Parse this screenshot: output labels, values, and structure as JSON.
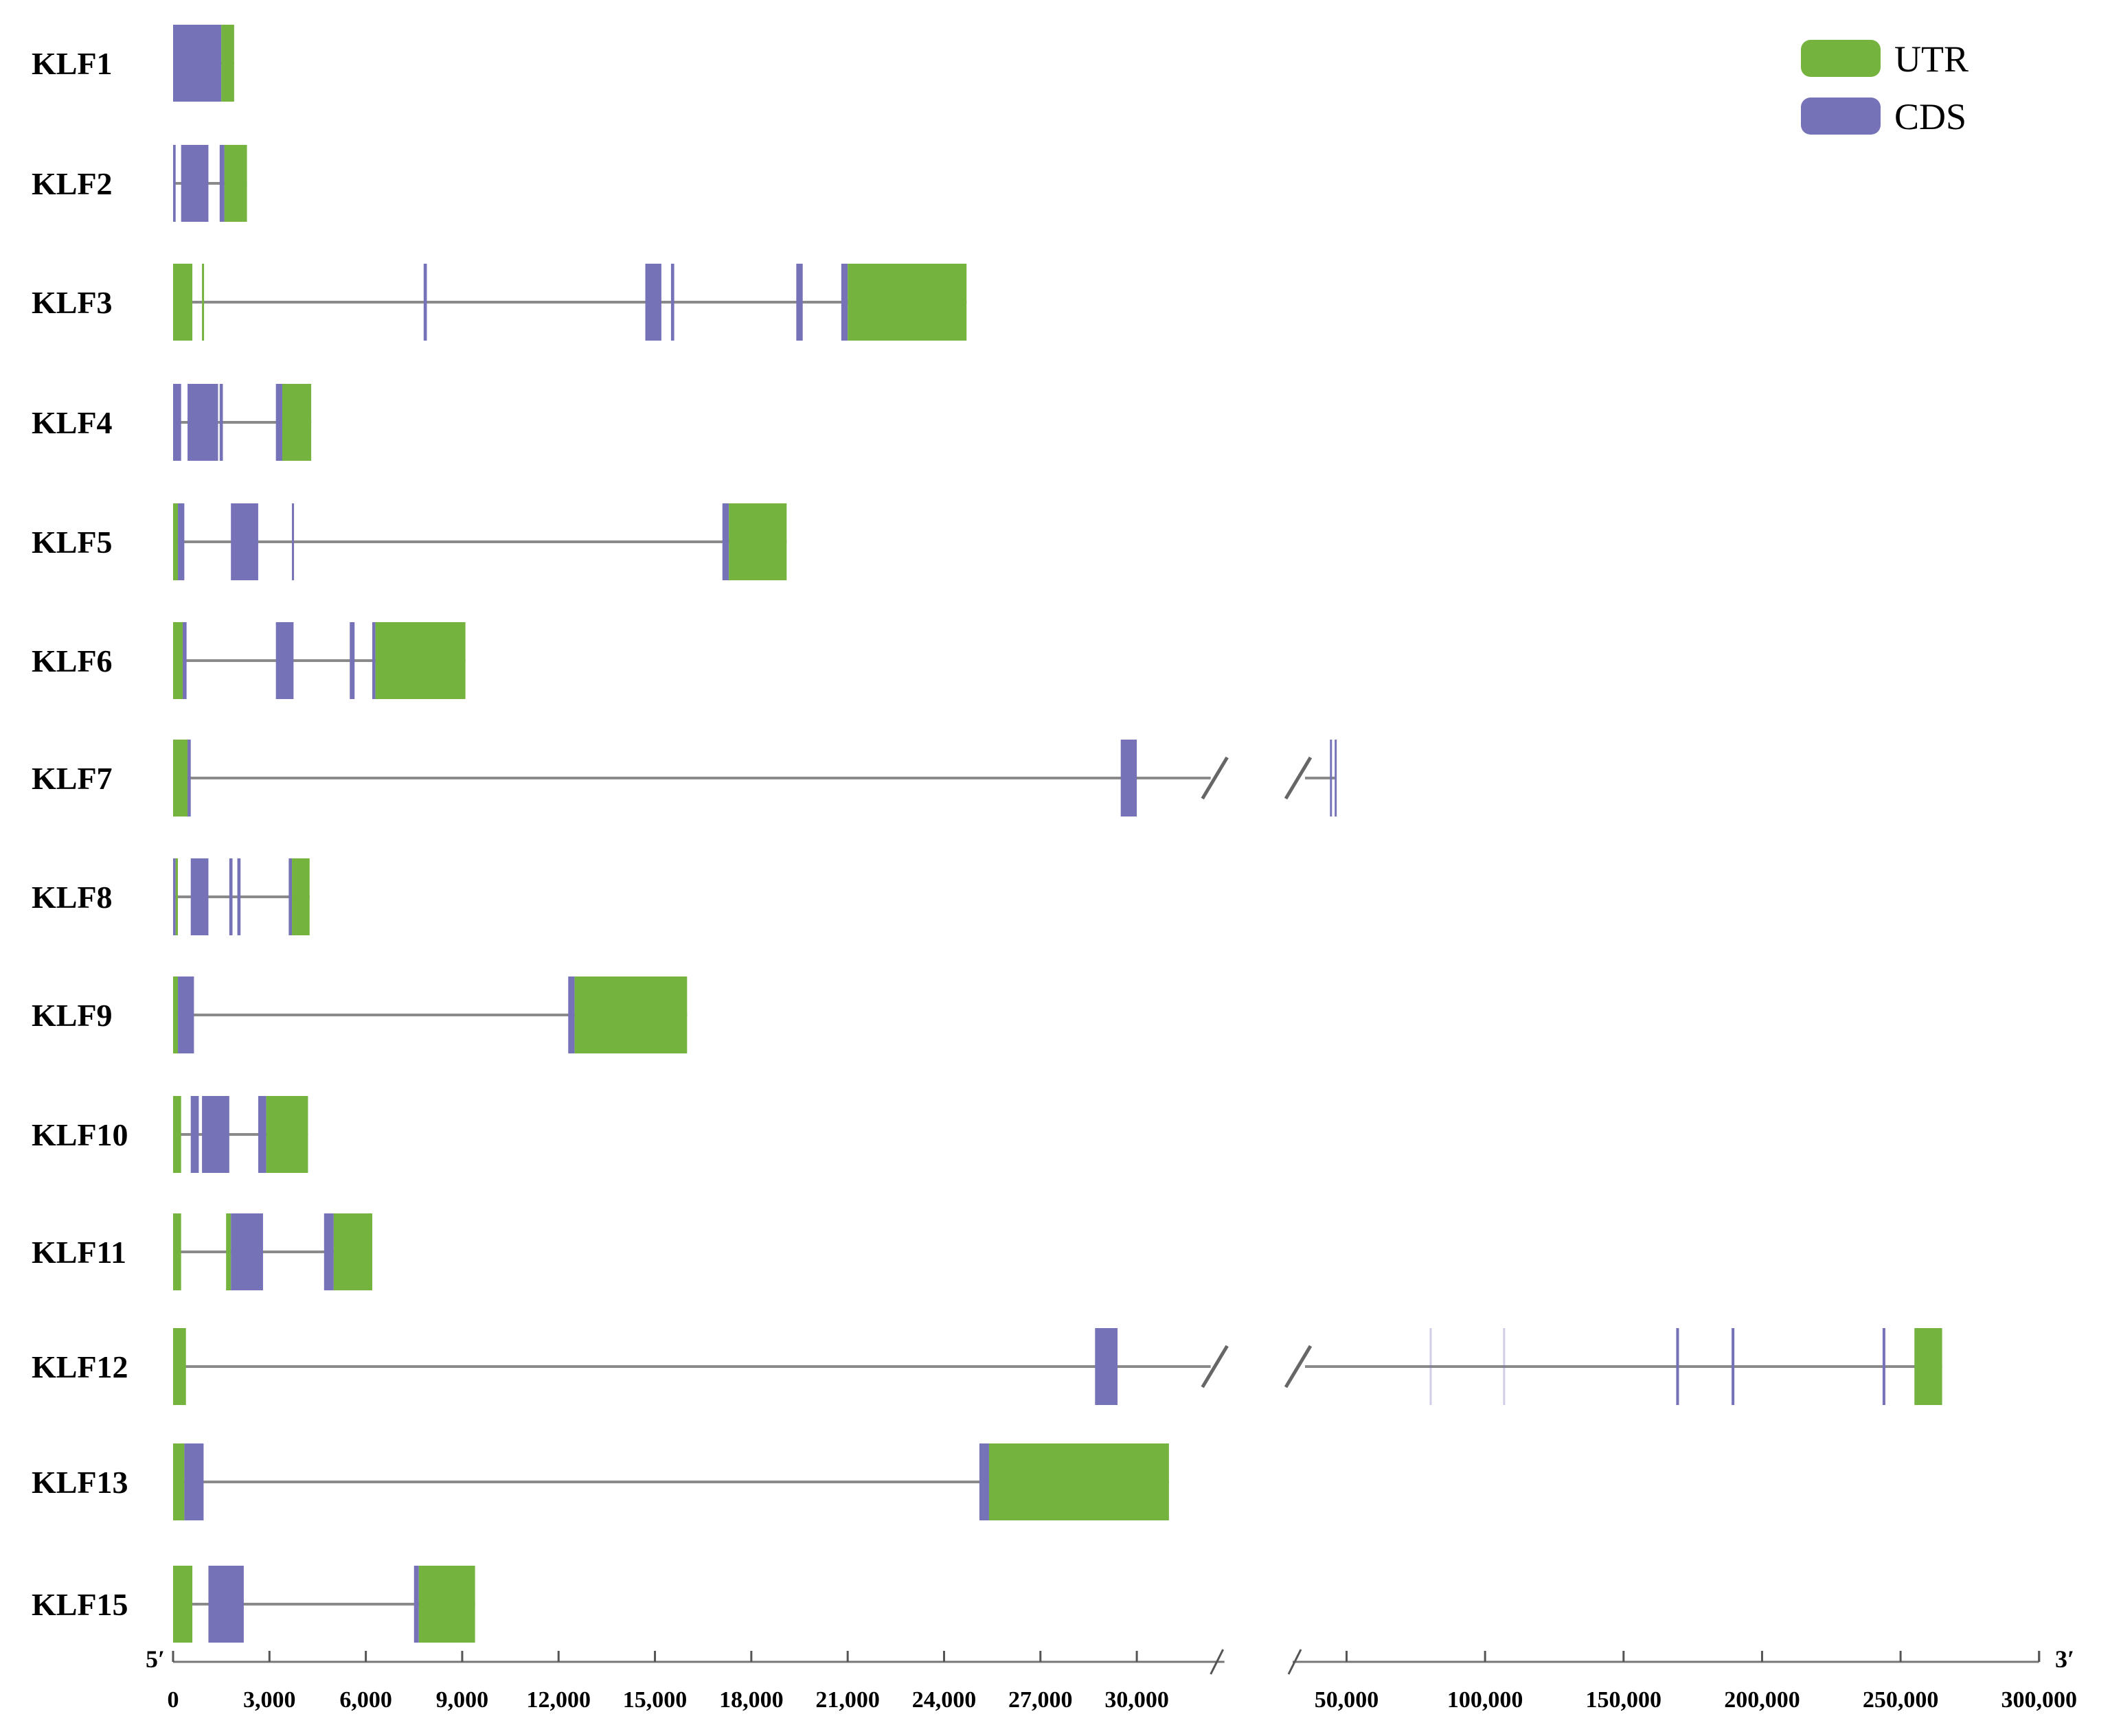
{
  "legend": {
    "utr_label": "UTR",
    "cds_label": "CDS",
    "utr_color": "#74b33e",
    "cds_color": "#7672b8"
  },
  "intron_color": "#8a8a8a",
  "axis": {
    "start_label": "5′",
    "end_label": "3′",
    "segment1_ticks": [
      "0",
      "3,000",
      "6,000",
      "9,000",
      "12,000",
      "15,000",
      "18,000",
      "21,000",
      "24,000",
      "27,000",
      "30,000"
    ],
    "segment1_tick_values": [
      0,
      3000,
      6000,
      9000,
      12000,
      15000,
      18000,
      21000,
      24000,
      27000,
      30000
    ],
    "segment1_range_bp": [
      0,
      32300
    ],
    "segment2_ticks": [
      "50,000",
      "100,000",
      "150,000",
      "200,000",
      "250,000",
      "300,000"
    ],
    "segment2_tick_values": [
      50000,
      100000,
      150000,
      200000,
      250000,
      300000
    ],
    "segment2_range_bp": [
      35000,
      300000
    ]
  },
  "genes": [
    {
      "name": "KLF1",
      "span": [
        0,
        1900
      ],
      "exons": [
        {
          "s": 0,
          "e": 1500,
          "t": "cds"
        },
        {
          "s": 1500,
          "e": 1900,
          "t": "utr"
        }
      ]
    },
    {
      "name": "KLF2",
      "span": [
        0,
        2300
      ],
      "exons": [
        {
          "s": 0,
          "e": 80,
          "t": "cds"
        },
        {
          "s": 250,
          "e": 1100,
          "t": "cds"
        },
        {
          "s": 1450,
          "e": 1600,
          "t": "cds"
        },
        {
          "s": 1600,
          "e": 2300,
          "t": "utr"
        }
      ]
    },
    {
      "name": "KLF3",
      "span": [
        0,
        24700
      ],
      "exons": [
        {
          "s": 0,
          "e": 600,
          "t": "utr"
        },
        {
          "s": 900,
          "e": 960,
          "t": "utr"
        },
        {
          "s": 7800,
          "e": 7900,
          "t": "cds"
        },
        {
          "s": 14700,
          "e": 15200,
          "t": "cds"
        },
        {
          "s": 15500,
          "e": 15600,
          "t": "cds"
        },
        {
          "s": 19400,
          "e": 19600,
          "t": "cds"
        },
        {
          "s": 20800,
          "e": 21000,
          "t": "cds"
        },
        {
          "s": 21000,
          "e": 24700,
          "t": "utr"
        }
      ]
    },
    {
      "name": "KLF4",
      "span": [
        0,
        4300
      ],
      "exons": [
        {
          "s": 0,
          "e": 250,
          "t": "cds"
        },
        {
          "s": 450,
          "e": 1400,
          "t": "cds"
        },
        {
          "s": 1450,
          "e": 1550,
          "t": "cds"
        },
        {
          "s": 3200,
          "e": 3400,
          "t": "cds"
        },
        {
          "s": 3400,
          "e": 4300,
          "t": "utr"
        }
      ]
    },
    {
      "name": "KLF5",
      "span": [
        0,
        19100
      ],
      "exons": [
        {
          "s": 0,
          "e": 150,
          "t": "utr"
        },
        {
          "s": 150,
          "e": 350,
          "t": "cds"
        },
        {
          "s": 1800,
          "e": 2650,
          "t": "cds"
        },
        {
          "s": 3700,
          "e": 3760,
          "t": "cds"
        },
        {
          "s": 17100,
          "e": 17300,
          "t": "cds"
        },
        {
          "s": 17300,
          "e": 19100,
          "t": "utr"
        }
      ]
    },
    {
      "name": "KLF6",
      "span": [
        0,
        9100
      ],
      "exons": [
        {
          "s": 0,
          "e": 300,
          "t": "utr"
        },
        {
          "s": 300,
          "e": 420,
          "t": "cds"
        },
        {
          "s": 3200,
          "e": 3750,
          "t": "cds"
        },
        {
          "s": 5500,
          "e": 5650,
          "t": "cds"
        },
        {
          "s": 6200,
          "e": 6300,
          "t": "cds"
        },
        {
          "s": 6300,
          "e": 9100,
          "t": "utr"
        }
      ]
    },
    {
      "name": "KLF7",
      "span": [
        0,
        32300
      ],
      "break": true,
      "span2": [
        35000,
        46000
      ],
      "exons": [
        {
          "s": 0,
          "e": 450,
          "t": "utr"
        },
        {
          "s": 450,
          "e": 550,
          "t": "cds"
        },
        {
          "s": 29500,
          "e": 30000,
          "t": "cds"
        },
        {
          "s": 44000,
          "e": 44200,
          "t": "cds"
        },
        {
          "s": 45700,
          "e": 45900,
          "t": "cds"
        }
      ]
    },
    {
      "name": "KLF8",
      "span": [
        0,
        4250
      ],
      "exons": [
        {
          "s": 0,
          "e": 80,
          "t": "cds"
        },
        {
          "s": 80,
          "e": 150,
          "t": "utr"
        },
        {
          "s": 550,
          "e": 1100,
          "t": "cds"
        },
        {
          "s": 1750,
          "e": 1850,
          "t": "cds"
        },
        {
          "s": 2000,
          "e": 2100,
          "t": "cds"
        },
        {
          "s": 3600,
          "e": 3700,
          "t": "cds"
        },
        {
          "s": 3700,
          "e": 4250,
          "t": "utr"
        }
      ]
    },
    {
      "name": "KLF9",
      "span": [
        0,
        16000
      ],
      "exons": [
        {
          "s": 0,
          "e": 150,
          "t": "utr"
        },
        {
          "s": 150,
          "e": 650,
          "t": "cds"
        },
        {
          "s": 12300,
          "e": 12500,
          "t": "cds"
        },
        {
          "s": 12500,
          "e": 16000,
          "t": "utr"
        }
      ]
    },
    {
      "name": "KLF10",
      "span": [
        0,
        4200
      ],
      "exons": [
        {
          "s": 0,
          "e": 250,
          "t": "utr"
        },
        {
          "s": 550,
          "e": 800,
          "t": "cds"
        },
        {
          "s": 900,
          "e": 1750,
          "t": "cds"
        },
        {
          "s": 2650,
          "e": 2900,
          "t": "cds"
        },
        {
          "s": 2900,
          "e": 4200,
          "t": "utr"
        }
      ]
    },
    {
      "name": "KLF11",
      "span": [
        0,
        6200
      ],
      "exons": [
        {
          "s": 0,
          "e": 250,
          "t": "utr"
        },
        {
          "s": 1650,
          "e": 1800,
          "t": "utr"
        },
        {
          "s": 1800,
          "e": 2800,
          "t": "cds"
        },
        {
          "s": 4700,
          "e": 5000,
          "t": "cds"
        },
        {
          "s": 5000,
          "e": 6200,
          "t": "utr"
        }
      ]
    },
    {
      "name": "KLF12",
      "span": [
        0,
        32300
      ],
      "break": true,
      "span2": [
        35000,
        265000
      ],
      "exons": [
        {
          "s": 0,
          "e": 400,
          "t": "utr"
        },
        {
          "s": 28700,
          "e": 29400,
          "t": "cds"
        },
        {
          "s": 80000,
          "e": 80400,
          "t": "cds",
          "faint": true
        },
        {
          "s": 106500,
          "e": 106900,
          "t": "cds",
          "faint": true
        },
        {
          "s": 169000,
          "e": 170000,
          "t": "cds"
        },
        {
          "s": 189000,
          "e": 190000,
          "t": "cds"
        },
        {
          "s": 243500,
          "e": 244500,
          "t": "cds"
        },
        {
          "s": 255000,
          "e": 265000,
          "t": "utr"
        }
      ]
    },
    {
      "name": "KLF13",
      "span": [
        0,
        31000
      ],
      "exons": [
        {
          "s": 0,
          "e": 350,
          "t": "utr"
        },
        {
          "s": 350,
          "e": 950,
          "t": "cds"
        },
        {
          "s": 25100,
          "e": 25400,
          "t": "cds"
        },
        {
          "s": 25400,
          "e": 31000,
          "t": "utr"
        }
      ]
    },
    {
      "name": "KLF15",
      "span": [
        0,
        9400
      ],
      "exons": [
        {
          "s": 0,
          "e": 600,
          "t": "utr"
        },
        {
          "s": 1100,
          "e": 2200,
          "t": "cds"
        },
        {
          "s": 7500,
          "e": 7650,
          "t": "cds"
        },
        {
          "s": 7650,
          "e": 9400,
          "t": "utr"
        }
      ]
    }
  ]
}
